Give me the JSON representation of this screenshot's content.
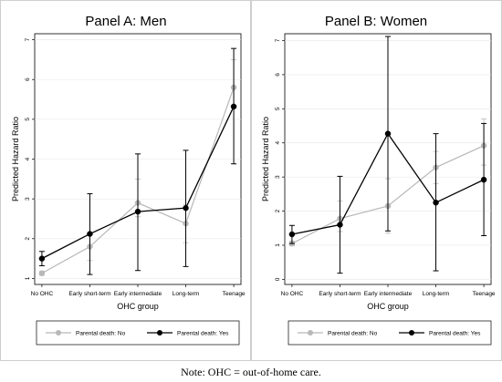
{
  "note": "Note: OHC = out-of-home care.",
  "chart_data": [
    {
      "type": "line",
      "title": "Panel A: Men",
      "xlabel": "OHC group",
      "ylabel": "Predicted Hazard Ratio",
      "categories": [
        "No OHC",
        "Early short-term",
        "Early intermediate",
        "Long-term",
        "Teenage"
      ],
      "yticks": [
        "1",
        "2",
        "3",
        "4",
        "5",
        "6",
        "7"
      ],
      "ylim": [
        0.85,
        7.15
      ],
      "legend": "bottom",
      "series": [
        {
          "name": "Parental death: No",
          "color": "#b8b8b8",
          "values": [
            1.13,
            1.8,
            2.9,
            2.38,
            5.8
          ],
          "ci_low": [
            1.08,
            1.45,
            2.55,
            1.9,
            5.3
          ],
          "ci_high": [
            1.18,
            2.15,
            3.5,
            2.85,
            6.5
          ]
        },
        {
          "name": "Parental death: Yes",
          "color": "#000000",
          "values": [
            1.5,
            2.12,
            2.68,
            2.77,
            5.32
          ],
          "ci_low": [
            1.32,
            1.1,
            1.2,
            1.3,
            3.88
          ],
          "ci_high": [
            1.68,
            3.13,
            4.13,
            4.22,
            6.78
          ]
        }
      ]
    },
    {
      "type": "line",
      "title": "Panel B: Women",
      "xlabel": "OHC group",
      "ylabel": "Predicted Hazard Ratio",
      "categories": [
        "No OHC",
        "Early short-term",
        "Early intermediate",
        "Long-term",
        "Teenage"
      ],
      "yticks": [
        "0",
        "1",
        "2",
        "3",
        "4",
        "5",
        "6",
        "7"
      ],
      "ylim": [
        -0.15,
        7.2
      ],
      "legend": "bottom",
      "series": [
        {
          "name": "Parental death: No",
          "color": "#b8b8b8",
          "values": [
            1.05,
            1.78,
            2.15,
            3.28,
            3.92
          ],
          "ci_low": [
            0.98,
            1.4,
            1.35,
            2.8,
            3.35
          ],
          "ci_high": [
            1.12,
            2.3,
            2.95,
            3.75,
            4.7
          ]
        },
        {
          "name": "Parental death: Yes",
          "color": "#000000",
          "values": [
            1.32,
            1.6,
            4.27,
            2.25,
            2.92
          ],
          "ci_low": [
            1.05,
            0.18,
            1.42,
            0.25,
            1.28
          ],
          "ci_high": [
            1.58,
            3.02,
            7.12,
            4.27,
            4.57
          ]
        }
      ]
    }
  ]
}
